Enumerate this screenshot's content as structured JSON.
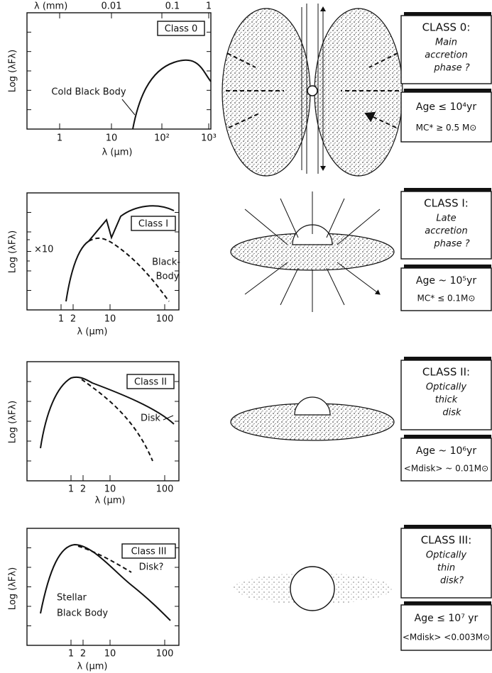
{
  "top_axis": {
    "label": "λ (mm)",
    "ticks": [
      "0.01",
      "0.1",
      "1"
    ]
  },
  "panels": [
    {
      "class_label": "Class 0",
      "y_label": "Log (λFλ)",
      "x_label": "λ (µm)",
      "x_ticks": [
        "1",
        "10",
        "10²",
        "10³"
      ],
      "curve_labels": [
        "Cold Black Body"
      ],
      "class_title": "CLASS 0:",
      "description": [
        "Main",
        "accretion",
        "phase ?"
      ],
      "age": "Age ≤ 10⁴yr",
      "mass": "MC* ≥ 0.5 M⊙"
    },
    {
      "class_label": "Class I",
      "y_label": "Log (λFλ)",
      "x_label": "λ (µm)",
      "x_ticks": [
        "1",
        "2",
        "10",
        "100"
      ],
      "curve_labels": [
        "×10",
        "Black-",
        "Body"
      ],
      "class_title": "CLASS I:",
      "description": [
        "Late",
        "accretion",
        "phase ?"
      ],
      "age": "Age ~ 10⁵yr",
      "mass": "MC* ≤ 0.1M⊙"
    },
    {
      "class_label": "Class II",
      "y_label": "Log (λFλ)",
      "x_label": "λ (µm)",
      "x_ticks": [
        "1",
        "2",
        "10",
        "100"
      ],
      "curve_labels": [
        "Disk"
      ],
      "class_title": "CLASS II:",
      "description": [
        "Optically",
        "thick",
        "disk"
      ],
      "age": "Age ~ 10⁶yr",
      "mass": "<Mdisk> ~ 0.01M⊙"
    },
    {
      "class_label": "Class III",
      "y_label": "Log (λFλ)",
      "x_label": "λ (µm)",
      "x_ticks": [
        "1",
        "2",
        "10",
        "100"
      ],
      "curve_labels": [
        "Disk?",
        "Stellar",
        "Black Body"
      ],
      "class_title": "CLASS III:",
      "description": [
        "Optically",
        "thin",
        "disk?"
      ],
      "age": "Age ≤ 10⁷ yr",
      "mass": "<Mdisk> <0.003M⊙"
    }
  ]
}
